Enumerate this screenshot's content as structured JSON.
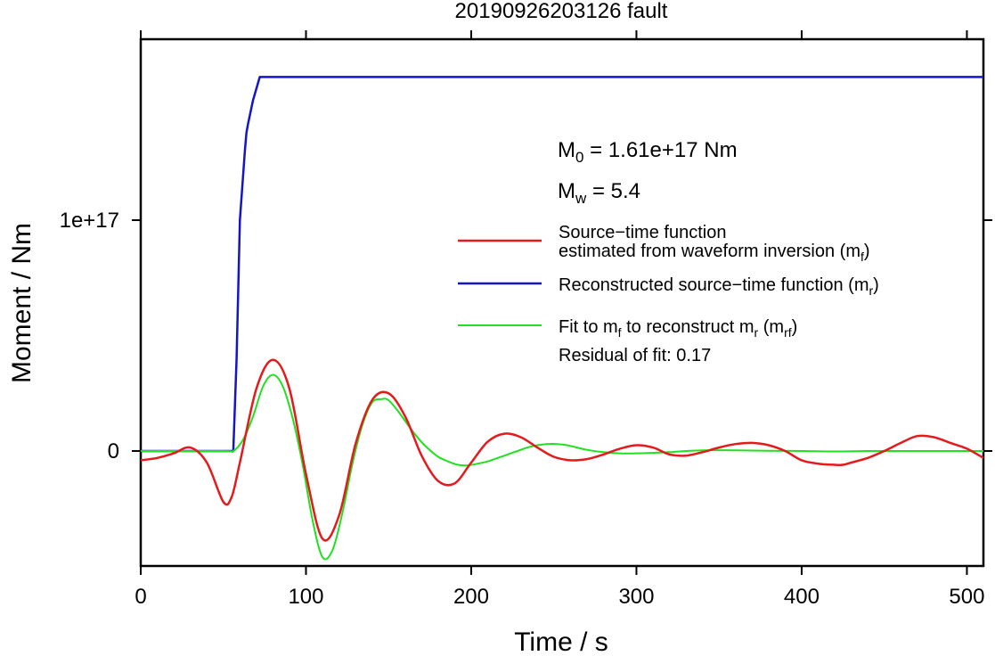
{
  "chart_data": {
    "type": "line",
    "title": "20190926203126 fault",
    "xlabel": "Time / s",
    "ylabel": "Moment / Nm",
    "xlim": [
      0,
      510
    ],
    "ylim": [
      -5e+16,
      1.8e+17
    ],
    "x_ticks": [
      0,
      100,
      200,
      300,
      400,
      500
    ],
    "x_tick_labels": [
      "0",
      "100",
      "200",
      "300",
      "400",
      "500"
    ],
    "y_ticks": [
      0,
      1e+17
    ],
    "y_tick_labels": [
      "0",
      "1e+17"
    ],
    "grid": false,
    "legend_position": "right",
    "annotations": {
      "m0": {
        "sym": "M",
        "sub": "0",
        "rest": " = 1.61e+17 Nm"
      },
      "mw": {
        "sym": "M",
        "sub": "w",
        "rest": " = 5.4"
      },
      "residual": "Residual of fit: 0.17"
    },
    "legend": [
      {
        "line1": "Source−time function",
        "pre": "estimated from waveform inversion (m",
        "sub": "f",
        "post": ")",
        "color": "#e41a1c"
      },
      {
        "pre": "Reconstructed source−time function (m",
        "sub": "r",
        "post": ")",
        "color": "#1515c8"
      },
      {
        "pre": "Fit to m",
        "sub": "f",
        "mid": " to reconstruct m",
        "sub2": "r",
        "mid2": " (m",
        "sub3": "rf",
        "post": ")",
        "color": "#20e020"
      }
    ],
    "series": [
      {
        "key": "source_time_function",
        "color": "#e41a1c",
        "x": [
          0,
          10,
          20,
          30,
          40,
          50,
          55,
          60,
          70,
          80,
          90,
          100,
          110,
          120,
          130,
          140,
          150,
          160,
          170,
          180,
          190,
          200,
          210,
          220,
          230,
          240,
          250,
          260,
          270,
          280,
          290,
          300,
          310,
          320,
          330,
          340,
          350,
          360,
          370,
          380,
          390,
          400,
          410,
          420,
          425,
          430,
          440,
          450,
          460,
          470,
          480,
          490,
          500,
          510
        ],
        "y": [
          -4000000000000000.0,
          -3000000000000000.0,
          -1000000000000000.0,
          1500000000000000.0,
          -5000000000000000.0,
          -2.2e+16,
          -2e+16,
          -5000000000000000.0,
          2.7e+16,
          3.95e+16,
          2.7e+16,
          -1e+16,
          -3.8e+16,
          -2.8e+16,
          3000000000000000.0,
          2.2e+16,
          2.5e+16,
          1.5e+16,
          -2000000000000000.0,
          -1.3e+16,
          -1.4e+16,
          -5000000000000000.0,
          4000000000000000.0,
          7500000000000000.0,
          6000000000000000.0,
          1500000000000000.0,
          -2500000000000000.0,
          -4000000000000000.0,
          -3500000000000000.0,
          -1500000000000000.0,
          1000000000000000.0,
          2500000000000000.0,
          1500000000000000.0,
          -1500000000000000.0,
          -2000000000000000.0,
          -500000000000000.0,
          1500000000000000.0,
          3000000000000000.0,
          3500000000000000.0,
          2500000000000000.0,
          0.0,
          -4000000000000000.0,
          -5500000000000000.0,
          -6000000000000000.0,
          -6000000000000000.0,
          -5000000000000000.0,
          -3000000000000000.0,
          0.0,
          3500000000000000.0,
          6500000000000000.0,
          6000000000000000.0,
          3500000000000000.0,
          1000000000000000.0,
          -3000000000000000.0
        ]
      },
      {
        "key": "reconstructed",
        "color": "#1515c8",
        "x": [
          0,
          56,
          58,
          60,
          63,
          64,
          65,
          68,
          72,
          80,
          100,
          200,
          300,
          400,
          500,
          510
        ],
        "y": [
          0,
          0,
          4e+16,
          1e+17,
          1.3e+17,
          1.38e+17,
          1.42e+17,
          1.52e+17,
          1.62e+17,
          1.62e+17,
          1.62e+17,
          1.62e+17,
          1.62e+17,
          1.62e+17,
          1.62e+17,
          1.62e+17
        ]
      },
      {
        "key": "fit",
        "color": "#20e020",
        "x": [
          0,
          50,
          56,
          62,
          68,
          74,
          80,
          86,
          92,
          98,
          104,
          110,
          116,
          122,
          128,
          134,
          140,
          146,
          150,
          156,
          162,
          168,
          174,
          180,
          186,
          192,
          198,
          204,
          210,
          216,
          222,
          228,
          234,
          240,
          246,
          252,
          258,
          264,
          270,
          280,
          290,
          300,
          310,
          320,
          330,
          340,
          360,
          380,
          400,
          420,
          440,
          460,
          480,
          500,
          510
        ],
        "y": [
          0,
          0,
          0.0,
          5000000000000000.0,
          1.5e+16,
          2.8e+16,
          3.3e+16,
          2.8e+16,
          1.4e+16,
          -6000000000000000.0,
          -3e+16,
          -4.6e+16,
          -4.3e+16,
          -2.7e+16,
          -6000000000000000.0,
          1.1e+16,
          2.1e+16,
          2.25e+16,
          2.2e+16,
          1.7e+16,
          1.1e+16,
          5500000000000000.0,
          1000000000000000.0,
          -2500000000000000.0,
          -4500000000000000.0,
          -6000000000000000.0,
          -6200000000000000.0,
          -5500000000000000.0,
          -4500000000000000.0,
          -3000000000000000.0,
          -1500000000000000.0,
          0.0,
          1500000000000000.0,
          2500000000000000.0,
          3000000000000000.0,
          3000000000000000.0,
          2500000000000000.0,
          1500000000000000.0,
          500000000000000.0,
          -500000000000000.0,
          -1000000000000000.0,
          -1000000000000000.0,
          -800000000000000.0,
          -500000000000000.0,
          0.0,
          300000000000000.0,
          300000000000000.0,
          100000000000000.0,
          0.0,
          -200000000000000.0,
          0.0,
          0.0,
          0.0,
          0.0,
          0.0
        ]
      }
    ]
  }
}
